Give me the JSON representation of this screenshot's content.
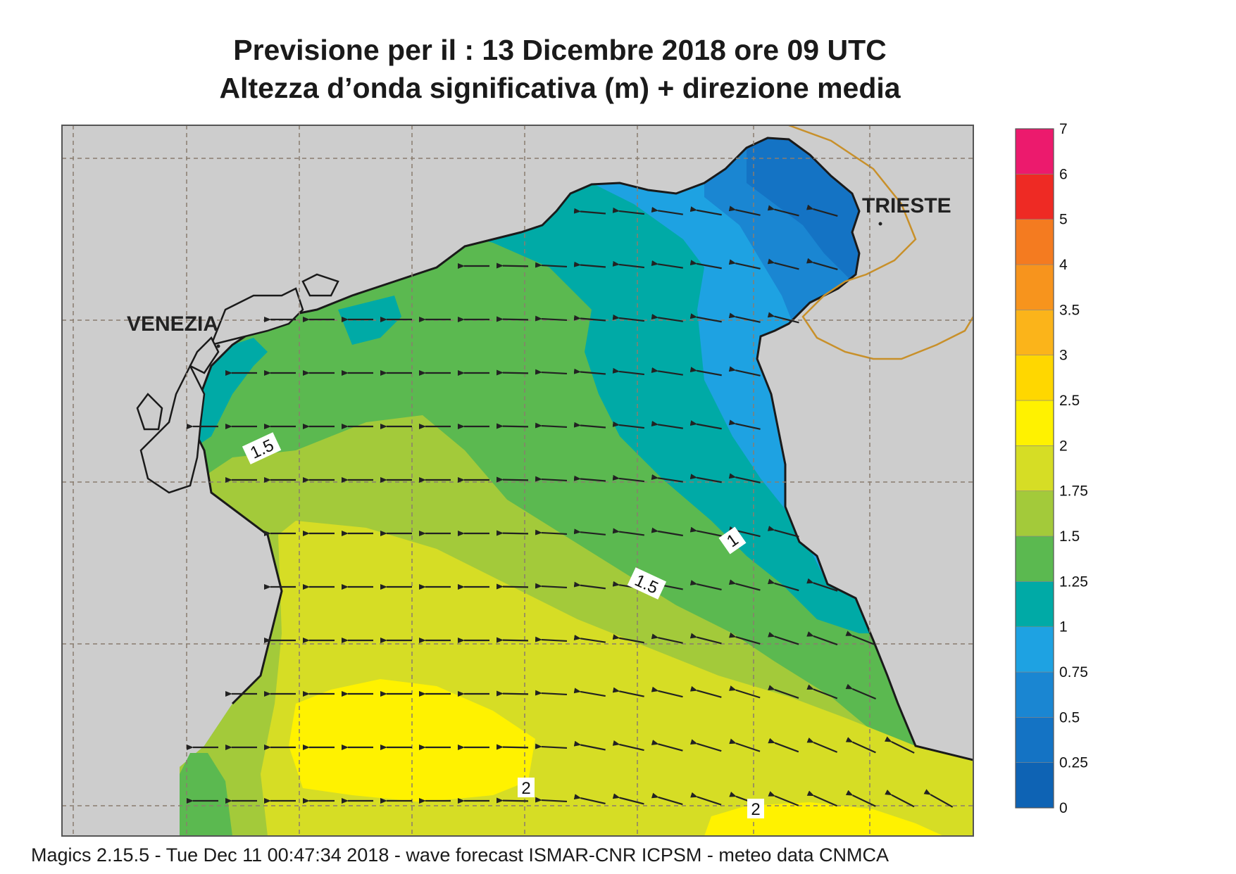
{
  "title_line1": "Previsione per il  :  13 Dicembre  2018   ore 09 UTC",
  "title_line2": "Altezza d’onda significativa (m) + direzione media",
  "footer": "Magics 2.15.5 - Tue Dec 11 00:47:34 2018 - wave forecast  ISMAR-CNR  ICPSM - meteo data   CNMCA",
  "cities": [
    {
      "name": "VENEZIA"
    },
    {
      "name": "TRIESTE"
    }
  ],
  "contour_labels": [
    "1.5",
    "1",
    "1.5",
    "2",
    "2"
  ],
  "legend": {
    "ticks": [
      "0",
      "0.25",
      "0.5",
      "0.75",
      "1",
      "1.25",
      "1.5",
      "1.75",
      "2",
      "2.5",
      "3",
      "3.5",
      "4",
      "5",
      "6",
      "7"
    ],
    "colors": [
      "#0e63b4",
      "#1473c4",
      "#1a86d2",
      "#1ea2e2",
      "#00aaa6",
      "#5bb950",
      "#a3ca3a",
      "#d6dd25",
      "#fff200",
      "#ffd700",
      "#fbb41a",
      "#f7941d",
      "#f47b20",
      "#ee2a24",
      "#ec1a6d"
    ]
  },
  "wave_direction": "westward (arrows pointing W, tilted NW in east)",
  "colors": {
    "land": "#cdcdcd",
    "coast": "#1a1a1a",
    "grid": "#8a7d6e",
    "border": "#c8902a"
  }
}
